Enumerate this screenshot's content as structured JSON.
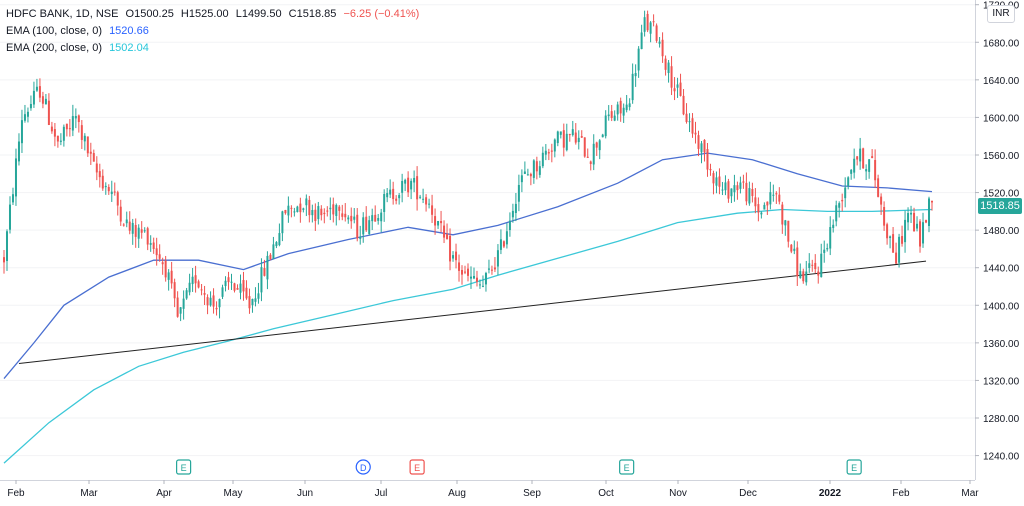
{
  "legend": {
    "symbol": "HDFC BANK, 1D, NSE",
    "open": "O1500.25",
    "high": "H1525.00",
    "low": "L1499.50",
    "close": "C1518.85",
    "change": "−6.25 (−0.41%)",
    "ema100_label": "EMA (100, close, 0)",
    "ema100_value": "1520.66",
    "ema200_label": "EMA (200, close, 0)",
    "ema200_value": "1502.04"
  },
  "currency": "INR",
  "last_price": "1518.85",
  "colors": {
    "up": "#26a69a",
    "down": "#ef5350",
    "ema100": "#4a6fd1",
    "ema200": "#3cc8d8",
    "trendline": "#222222"
  },
  "chart_data": {
    "type": "candlestick",
    "y_ticks": [
      1240,
      1280,
      1320,
      1360,
      1400,
      1440,
      1480,
      1520,
      1560,
      1600,
      1640,
      1680,
      1720
    ],
    "ylim": [
      1214,
      1725
    ],
    "x_labels": [
      "Feb",
      "Mar",
      "Apr",
      "May",
      "Jun",
      "Jul",
      "Aug",
      "Sep",
      "Oct",
      "Nov",
      "Dec",
      "2022",
      "Feb",
      "Mar"
    ],
    "close_path": [
      {
        "t": 0,
        "c": 1450
      },
      {
        "t": 6,
        "c": 1600
      },
      {
        "t": 12,
        "c": 1630
      },
      {
        "t": 18,
        "c": 1570
      },
      {
        "t": 24,
        "c": 1600
      },
      {
        "t": 30,
        "c": 1545
      },
      {
        "t": 36,
        "c": 1520
      },
      {
        "t": 42,
        "c": 1480
      },
      {
        "t": 48,
        "c": 1475
      },
      {
        "t": 54,
        "c": 1440
      },
      {
        "t": 58,
        "c": 1385
      },
      {
        "t": 64,
        "c": 1430
      },
      {
        "t": 70,
        "c": 1400
      },
      {
        "t": 76,
        "c": 1425
      },
      {
        "t": 82,
        "c": 1400
      },
      {
        "t": 88,
        "c": 1445
      },
      {
        "t": 94,
        "c": 1500
      },
      {
        "t": 100,
        "c": 1510
      },
      {
        "t": 106,
        "c": 1495
      },
      {
        "t": 112,
        "c": 1510
      },
      {
        "t": 118,
        "c": 1480
      },
      {
        "t": 124,
        "c": 1500
      },
      {
        "t": 130,
        "c": 1520
      },
      {
        "t": 136,
        "c": 1530
      },
      {
        "t": 142,
        "c": 1510
      },
      {
        "t": 148,
        "c": 1460
      },
      {
        "t": 154,
        "c": 1430
      },
      {
        "t": 160,
        "c": 1420
      },
      {
        "t": 166,
        "c": 1460
      },
      {
        "t": 172,
        "c": 1530
      },
      {
        "t": 178,
        "c": 1550
      },
      {
        "t": 184,
        "c": 1575
      },
      {
        "t": 190,
        "c": 1580
      },
      {
        "t": 196,
        "c": 1560
      },
      {
        "t": 202,
        "c": 1600
      },
      {
        "t": 208,
        "c": 1610
      },
      {
        "t": 214,
        "c": 1700
      },
      {
        "t": 218,
        "c": 1690
      },
      {
        "t": 222,
        "c": 1650
      },
      {
        "t": 228,
        "c": 1600
      },
      {
        "t": 234,
        "c": 1560
      },
      {
        "t": 240,
        "c": 1520
      },
      {
        "t": 246,
        "c": 1530
      },
      {
        "t": 252,
        "c": 1500
      },
      {
        "t": 258,
        "c": 1520
      },
      {
        "t": 262,
        "c": 1470
      },
      {
        "t": 266,
        "c": 1430
      },
      {
        "t": 272,
        "c": 1440
      },
      {
        "t": 278,
        "c": 1500
      },
      {
        "t": 284,
        "c": 1560
      },
      {
        "t": 290,
        "c": 1550
      },
      {
        "t": 294,
        "c": 1490
      },
      {
        "t": 298,
        "c": 1450
      },
      {
        "t": 302,
        "c": 1500
      },
      {
        "t": 306,
        "c": 1470
      },
      {
        "t": 310,
        "c": 1520
      }
    ],
    "ema100": [
      {
        "t": 0,
        "v": 1322
      },
      {
        "t": 10,
        "v": 1360
      },
      {
        "t": 20,
        "v": 1400
      },
      {
        "t": 35,
        "v": 1430
      },
      {
        "t": 50,
        "v": 1448
      },
      {
        "t": 65,
        "v": 1448
      },
      {
        "t": 80,
        "v": 1438
      },
      {
        "t": 95,
        "v": 1455
      },
      {
        "t": 115,
        "v": 1470
      },
      {
        "t": 135,
        "v": 1483
      },
      {
        "t": 150,
        "v": 1475
      },
      {
        "t": 165,
        "v": 1485
      },
      {
        "t": 185,
        "v": 1505
      },
      {
        "t": 205,
        "v": 1530
      },
      {
        "t": 220,
        "v": 1555
      },
      {
        "t": 235,
        "v": 1562
      },
      {
        "t": 250,
        "v": 1555
      },
      {
        "t": 265,
        "v": 1540
      },
      {
        "t": 280,
        "v": 1527
      },
      {
        "t": 295,
        "v": 1525
      },
      {
        "t": 310,
        "v": 1521
      }
    ],
    "ema200": [
      {
        "t": 0,
        "v": 1232
      },
      {
        "t": 15,
        "v": 1275
      },
      {
        "t": 30,
        "v": 1310
      },
      {
        "t": 45,
        "v": 1335
      },
      {
        "t": 60,
        "v": 1350
      },
      {
        "t": 75,
        "v": 1362
      },
      {
        "t": 90,
        "v": 1375
      },
      {
        "t": 110,
        "v": 1390
      },
      {
        "t": 130,
        "v": 1405
      },
      {
        "t": 150,
        "v": 1417
      },
      {
        "t": 165,
        "v": 1432
      },
      {
        "t": 185,
        "v": 1450
      },
      {
        "t": 205,
        "v": 1468
      },
      {
        "t": 225,
        "v": 1488
      },
      {
        "t": 245,
        "v": 1498
      },
      {
        "t": 260,
        "v": 1502
      },
      {
        "t": 275,
        "v": 1500
      },
      {
        "t": 290,
        "v": 1500
      },
      {
        "t": 310,
        "v": 1502
      }
    ],
    "trendline": [
      {
        "t": 5,
        "v": 1338
      },
      {
        "t": 308,
        "v": 1447
      }
    ],
    "events": [
      {
        "t": 60,
        "label": "E",
        "color": "#26a69a"
      },
      {
        "t": 120,
        "label": "D",
        "color": "#2962ff"
      },
      {
        "t": 138,
        "label": "E",
        "color": "#ef5350"
      },
      {
        "t": 208,
        "label": "E",
        "color": "#26a69a"
      },
      {
        "t": 284,
        "label": "E",
        "color": "#26a69a"
      }
    ]
  }
}
